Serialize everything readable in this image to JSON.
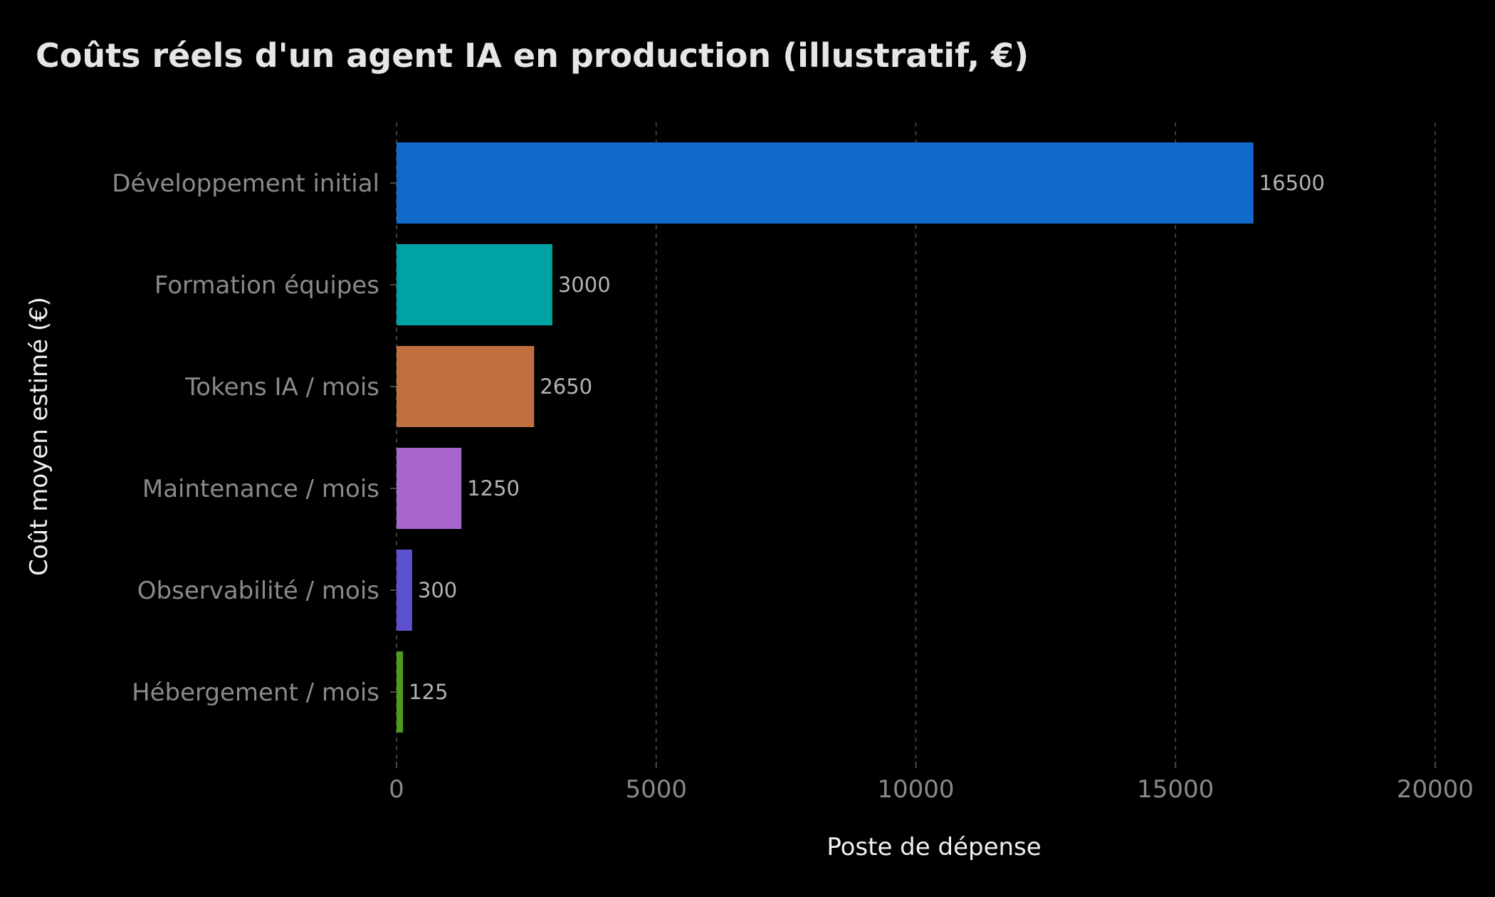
{
  "chart_data": {
    "type": "bar",
    "orientation": "horizontal",
    "title": "Coûts réels d'un agent IA en production (illustratif, €)",
    "xlabel": "Poste de dépense",
    "ylabel": "Coût moyen estimé (€)",
    "categories": [
      "Développement initial",
      "Formation équipes",
      "Tokens IA / mois",
      "Maintenance / mois",
      "Observabilité / mois",
      "Hébergement / mois"
    ],
    "values": [
      16500,
      3000,
      2650,
      1250,
      300,
      125
    ],
    "value_labels": [
      "16500",
      "3000",
      "2650",
      "1250",
      "300",
      "125"
    ],
    "colors": [
      "#1269CC",
      "#00A3A3",
      "#C0703F",
      "#A866CC",
      "#5C52D1",
      "#4E9A23"
    ],
    "xlim": [
      0,
      20000
    ],
    "xticks": [
      0,
      5000,
      10000,
      15000,
      20000
    ],
    "xtick_labels": [
      "0",
      "5000",
      "10000",
      "15000",
      "20000"
    ],
    "grid": "vertical dashed",
    "legend": "none",
    "theme": {
      "background": "#000000",
      "title_color": "#e6e6e6",
      "axis_title_color": "#f0f0f0",
      "tick_label_color": "#8a8a8a",
      "data_label_color": "#b3b3b3",
      "grid_color": "#4a4a4a"
    }
  }
}
